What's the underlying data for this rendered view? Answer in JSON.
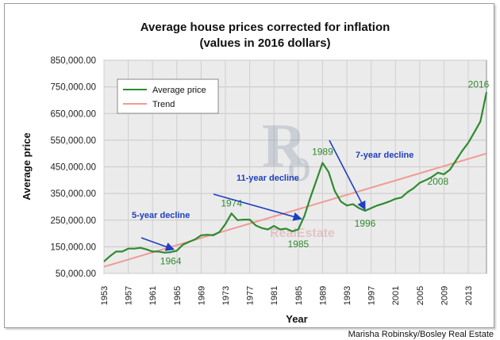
{
  "chart_data": {
    "type": "line",
    "title_line1": "Average house prices corrected for inflation",
    "title_line2": "(values in 2016 dollars)",
    "xlabel": "Year",
    "ylabel": "Average price",
    "ylim": [
      50000,
      850000
    ],
    "yticks": [
      "50,000.00",
      "150,000.00",
      "250,000.00",
      "350,000.00",
      "450,000.00",
      "550,000.00",
      "650,000.00",
      "750,000.00",
      "850,000.00"
    ],
    "xlim": [
      1953,
      2016
    ],
    "xticks": [
      "1953",
      "1957",
      "1961",
      "1965",
      "1969",
      "1973",
      "1977",
      "1981",
      "1985",
      "1989",
      "1993",
      "1997",
      "2001",
      "2005",
      "2009",
      "2013"
    ],
    "grid": true,
    "legend_position": "top-left",
    "series": [
      {
        "name": "Average price",
        "color": "#2e8b2e",
        "x": [
          1953,
          1954,
          1955,
          1956,
          1957,
          1958,
          1959,
          1960,
          1961,
          1962,
          1963,
          1964,
          1965,
          1966,
          1967,
          1968,
          1969,
          1970,
          1971,
          1972,
          1973,
          1974,
          1975,
          1976,
          1977,
          1978,
          1979,
          1980,
          1981,
          1982,
          1983,
          1984,
          1985,
          1986,
          1987,
          1988,
          1989,
          1990,
          1991,
          1992,
          1993,
          1994,
          1995,
          1996,
          1997,
          1998,
          1999,
          2000,
          2001,
          2002,
          2003,
          2004,
          2005,
          2006,
          2007,
          2008,
          2009,
          2010,
          2011,
          2012,
          2013,
          2014,
          2015,
          2016
        ],
        "values": [
          95000,
          115000,
          132000,
          132000,
          143000,
          143000,
          146000,
          140000,
          132000,
          132000,
          128000,
          130000,
          135000,
          158000,
          168000,
          178000,
          193000,
          195000,
          193000,
          205000,
          235000,
          275000,
          250000,
          252000,
          252000,
          230000,
          220000,
          215000,
          228000,
          215000,
          218000,
          208000,
          215000,
          265000,
          335000,
          400000,
          465000,
          430000,
          360000,
          320000,
          305000,
          310000,
          295000,
          285000,
          295000,
          305000,
          312000,
          320000,
          330000,
          335000,
          355000,
          370000,
          390000,
          400000,
          412000,
          428000,
          422000,
          440000,
          475000,
          510000,
          540000,
          580000,
          620000,
          730000
        ]
      },
      {
        "name": "Trend",
        "color": "#f19a94",
        "x": [
          1953,
          2016
        ],
        "values": [
          75000,
          500000
        ]
      }
    ],
    "point_labels": [
      {
        "text": "1964",
        "x": 1964,
        "y": 150000
      },
      {
        "text": "1974",
        "x": 1974,
        "y": 275000
      },
      {
        "text": "1985",
        "x": 1985,
        "y": 208000
      },
      {
        "text": "1989",
        "x": 1989,
        "y": 465000
      },
      {
        "text": "1996",
        "x": 1996,
        "y": 285000
      },
      {
        "text": "2008",
        "x": 2008,
        "y": 428000
      },
      {
        "text": "2016",
        "x": 2016,
        "y": 730000
      }
    ],
    "annotations": [
      {
        "text": "5-year decline",
        "arrow_to": [
          1964.5,
          140000
        ]
      },
      {
        "text": "11-year decline",
        "arrow_to": [
          1985.5,
          255000
        ]
      },
      {
        "text": "7-year decline",
        "arrow_to": [
          1996,
          290000
        ]
      }
    ],
    "watermark_text": "RealEstate",
    "credit": "Marisha Robinsky/Bosley Real Estate"
  }
}
